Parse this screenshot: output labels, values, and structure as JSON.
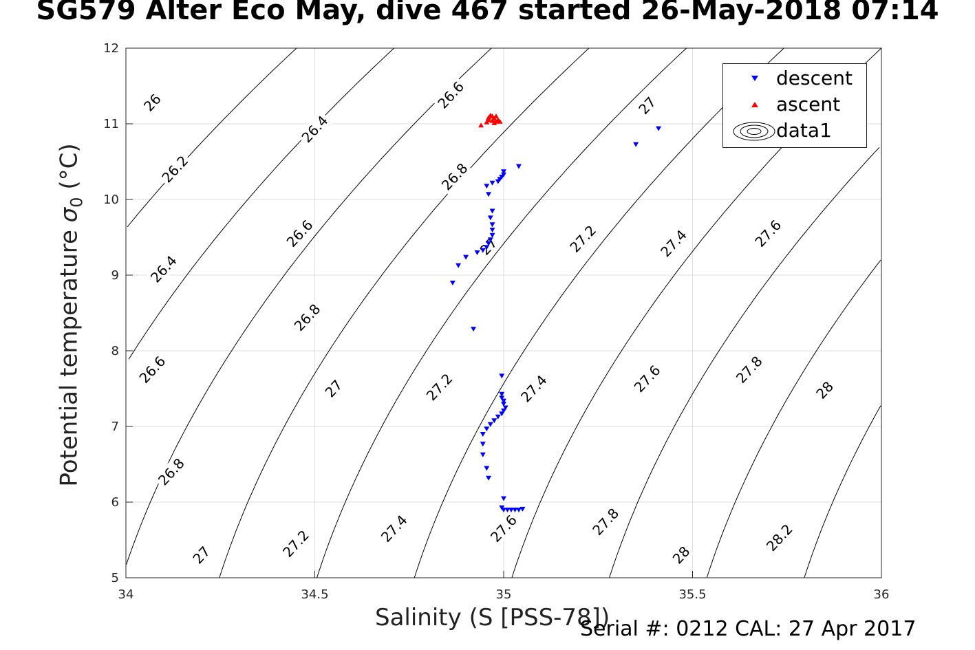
{
  "header": {
    "title": "SG579 Alter Eco May, dive 467 started 26-May-2018 07:14",
    "serial": "Serial #: 0212  CAL: 27 Apr 2017"
  },
  "chart_data": {
    "type": "scatter",
    "title": "SG579 Alter Eco May, dive 467 started 26-May-2018 07:14",
    "xlabel": "Salinity (S [PSS-78])",
    "ylabel_main": "Potential temperature ",
    "ylabel_sigma": "σ",
    "ylabel_sub": "0",
    "ylabel_unit": " (°C)",
    "xlim": [
      34,
      36
    ],
    "ylim": [
      5,
      12
    ],
    "xticks": [
      "34",
      "34.5",
      "35",
      "35.5",
      "36"
    ],
    "yticks": [
      "5",
      "6",
      "7",
      "8",
      "9",
      "10",
      "11",
      "12"
    ],
    "grid": true,
    "legend_position": "top-right",
    "legend": [
      "descent",
      "ascent",
      "data1"
    ],
    "colors": {
      "descent": "#0000ff",
      "ascent": "#ff0000",
      "contour": "#000000",
      "grid": "#dddddd"
    },
    "contour_levels": [
      26.0,
      26.2,
      26.4,
      26.6,
      26.8,
      27.0,
      27.2,
      27.4,
      27.6,
      27.8,
      28.0,
      28.2
    ],
    "contour_labels": [
      {
        "text": "26",
        "s": 34.07,
        "t": 11.28
      },
      {
        "text": "26.2",
        "s": 34.13,
        "t": 10.4
      },
      {
        "text": "26.4",
        "s": 34.1,
        "t": 9.08
      },
      {
        "text": "26.6",
        "s": 34.07,
        "t": 7.75
      },
      {
        "text": "26.8",
        "s": 34.12,
        "t": 6.4
      },
      {
        "text": "27",
        "s": 34.2,
        "t": 5.3
      },
      {
        "text": "26.4",
        "s": 34.5,
        "t": 10.93
      },
      {
        "text": "26.6",
        "s": 34.46,
        "t": 9.55
      },
      {
        "text": "26.8",
        "s": 34.48,
        "t": 8.44
      },
      {
        "text": "27",
        "s": 34.55,
        "t": 7.5
      },
      {
        "text": "27.2",
        "s": 34.45,
        "t": 5.45
      },
      {
        "text": "26.6",
        "s": 34.86,
        "t": 11.38
      },
      {
        "text": "26.8",
        "s": 34.87,
        "t": 10.3
      },
      {
        "text": "27",
        "s": 34.96,
        "t": 9.38
      },
      {
        "text": "27.2",
        "s": 34.83,
        "t": 7.52
      },
      {
        "text": "27.4",
        "s": 34.71,
        "t": 5.65
      },
      {
        "text": "27.6",
        "s": 35.0,
        "t": 5.65
      },
      {
        "text": "27.4",
        "s": 35.08,
        "t": 7.5
      },
      {
        "text": "27.2",
        "s": 35.21,
        "t": 9.48
      },
      {
        "text": "27",
        "s": 35.38,
        "t": 11.24
      },
      {
        "text": "27.4",
        "s": 35.45,
        "t": 9.42
      },
      {
        "text": "27.6",
        "s": 35.38,
        "t": 7.63
      },
      {
        "text": "27.8",
        "s": 35.27,
        "t": 5.74
      },
      {
        "text": "27.6",
        "s": 35.7,
        "t": 9.55
      },
      {
        "text": "27.8",
        "s": 35.65,
        "t": 7.75
      },
      {
        "text": "28",
        "s": 35.47,
        "t": 5.3
      },
      {
        "text": "28",
        "s": 35.85,
        "t": 7.48
      },
      {
        "text": "28.2",
        "s": 35.73,
        "t": 5.53
      }
    ],
    "series": [
      {
        "name": "descent",
        "marker": "triangle-down",
        "points": [
          [
            35.41,
            10.94
          ],
          [
            35.35,
            10.73
          ],
          [
            35.04,
            10.44
          ],
          [
            35.0,
            10.37
          ],
          [
            35.0,
            10.33
          ],
          [
            34.995,
            10.3
          ],
          [
            34.99,
            10.27
          ],
          [
            34.985,
            10.24
          ],
          [
            34.97,
            10.22
          ],
          [
            34.955,
            10.18
          ],
          [
            34.96,
            10.07
          ],
          [
            34.97,
            9.85
          ],
          [
            34.965,
            9.76
          ],
          [
            34.97,
            9.67
          ],
          [
            34.97,
            9.6
          ],
          [
            34.97,
            9.53
          ],
          [
            34.965,
            9.47
          ],
          [
            34.96,
            9.42
          ],
          [
            34.955,
            9.37
          ],
          [
            34.945,
            9.33
          ],
          [
            34.93,
            9.3
          ],
          [
            34.9,
            9.24
          ],
          [
            34.88,
            9.13
          ],
          [
            34.865,
            8.9
          ],
          [
            34.92,
            8.29
          ],
          [
            34.995,
            7.67
          ],
          [
            34.995,
            7.43
          ],
          [
            34.995,
            7.38
          ],
          [
            35.0,
            7.34
          ],
          [
            35.0,
            7.3
          ],
          [
            35.005,
            7.25
          ],
          [
            35.0,
            7.21
          ],
          [
            34.995,
            7.17
          ],
          [
            34.985,
            7.13
          ],
          [
            34.975,
            7.08
          ],
          [
            34.965,
            7.03
          ],
          [
            34.955,
            6.97
          ],
          [
            34.945,
            6.9
          ],
          [
            34.945,
            6.77
          ],
          [
            34.945,
            6.63
          ],
          [
            34.955,
            6.45
          ],
          [
            34.96,
            6.32
          ],
          [
            35.0,
            6.05
          ],
          [
            34.995,
            5.93
          ],
          [
            35.0,
            5.9
          ],
          [
            35.01,
            5.9
          ],
          [
            35.02,
            5.9
          ],
          [
            35.03,
            5.9
          ],
          [
            35.04,
            5.9
          ],
          [
            35.05,
            5.91
          ]
        ]
      },
      {
        "name": "ascent",
        "marker": "triangle-up",
        "points": [
          [
            34.94,
            10.98
          ],
          [
            34.955,
            11.02
          ],
          [
            34.96,
            11.08
          ],
          [
            34.965,
            11.11
          ],
          [
            34.97,
            11.1
          ],
          [
            34.975,
            11.07
          ],
          [
            34.97,
            11.04
          ],
          [
            34.98,
            11.03
          ],
          [
            34.985,
            11.05
          ],
          [
            34.975,
            11.01
          ],
          [
            34.96,
            11.05
          ],
          [
            34.98,
            11.1
          ],
          [
            34.99,
            11.03
          ]
        ]
      }
    ]
  }
}
